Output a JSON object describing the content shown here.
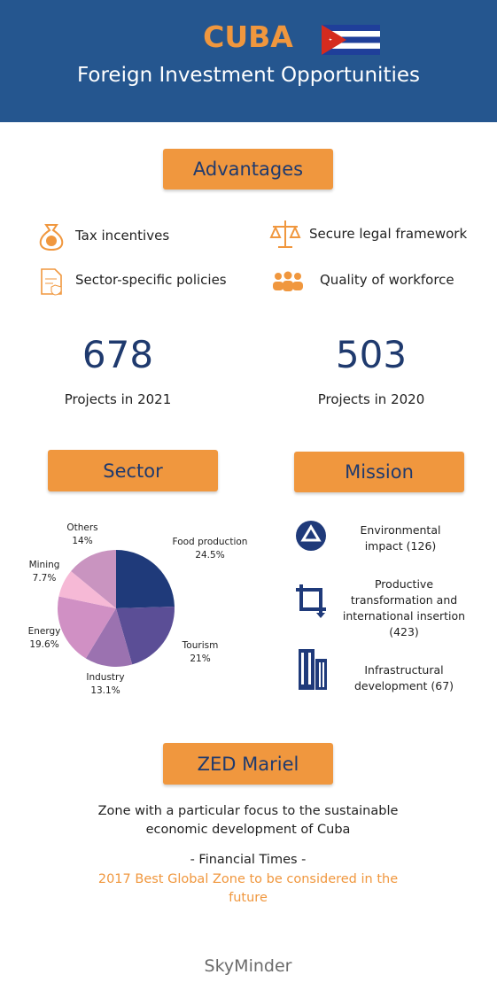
{
  "header": {
    "title": "CUBA",
    "subtitle": "Foreign Investment Opportunities"
  },
  "advantages": {
    "title": "Advantages",
    "items": [
      "Tax incentives",
      "Secure legal framework",
      "Sector-specific policies",
      "Quality of workforce"
    ]
  },
  "stats": [
    {
      "value": "678",
      "label": "Projects in 2021"
    },
    {
      "value": "503",
      "label": "Projects in 2020"
    }
  ],
  "chart_data": {
    "type": "pie",
    "title": "Sector",
    "categories": [
      "Food production",
      "Tourism",
      "Industry",
      "Energy",
      "Mining",
      "Others"
    ],
    "values": [
      24.5,
      21,
      13.1,
      19.6,
      7.7,
      14
    ],
    "value_labels": [
      "24.5%",
      "21%",
      "13.1%",
      "19.6%",
      "7.7%",
      "14%"
    ],
    "colors": [
      "#1f3a7a",
      "#5b4e96",
      "#9b72b0",
      "#d090c4",
      "#f6b9d6",
      "#c994c0"
    ]
  },
  "mission": {
    "title": "Mission",
    "items": [
      "Environmental impact (126)",
      "Productive transformation and international insertion (423)",
      "Infrastructural development (67)"
    ]
  },
  "zed": {
    "title": "ZED Mariel",
    "description": "Zone with a particular focus to the sustainable economic development of Cuba",
    "source": "- Financial Times -",
    "quote": "2017 Best Global Zone to be considered in the future"
  },
  "footer": {
    "brand": "SkyMinder"
  }
}
